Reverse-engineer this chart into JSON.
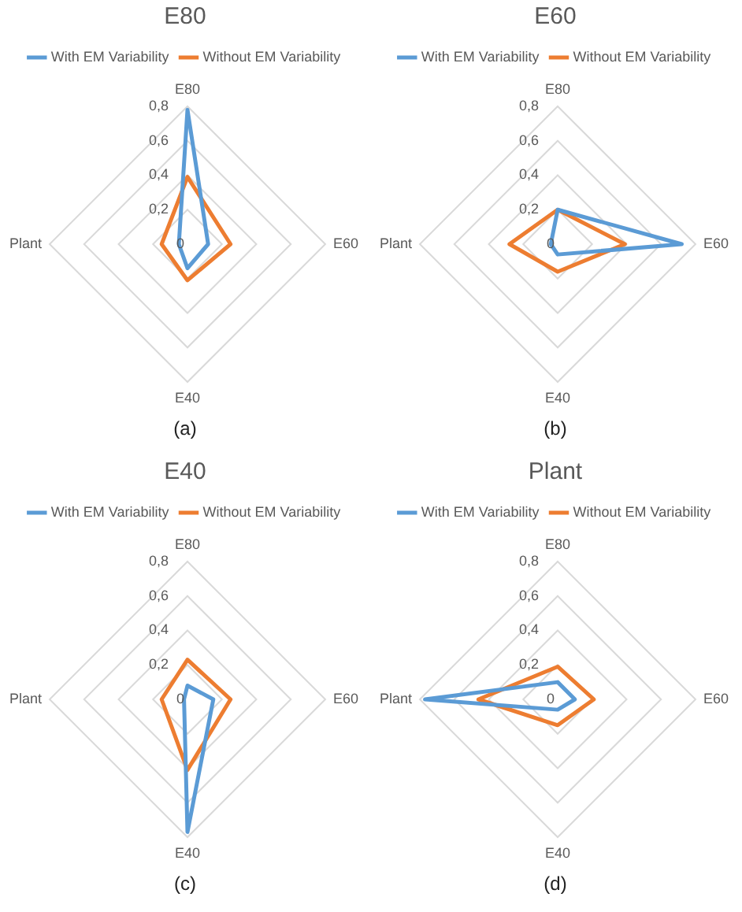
{
  "chart_data": [
    {
      "type": "radar",
      "title": "E80",
      "categories": [
        "E80",
        "E60",
        "E40",
        "Plant"
      ],
      "ylim": [
        0,
        0.8
      ],
      "yticks": [
        {
          "value": 0,
          "label": "0"
        },
        {
          "value": 0.2,
          "label": "0,2"
        },
        {
          "value": 0.4,
          "label": "0,4"
        },
        {
          "value": 0.6,
          "label": "0,6"
        },
        {
          "value": 0.8,
          "label": "0,8"
        }
      ],
      "grid": true,
      "legend": "top",
      "annotations": [
        "(a)"
      ],
      "series": [
        {
          "name": "With EM Variability",
          "color": "#5b9bd5",
          "values": [
            0.78,
            0.12,
            0.14,
            0.05
          ]
        },
        {
          "name": "Without EM Variability",
          "color": "#ed7d31",
          "values": [
            0.39,
            0.25,
            0.21,
            0.15
          ]
        }
      ]
    },
    {
      "type": "radar",
      "title": "E60",
      "categories": [
        "E80",
        "E60",
        "E40",
        "Plant"
      ],
      "ylim": [
        0,
        0.8
      ],
      "yticks": [
        {
          "value": 0,
          "label": "0"
        },
        {
          "value": 0.2,
          "label": "0,2"
        },
        {
          "value": 0.4,
          "label": "0,4"
        },
        {
          "value": 0.6,
          "label": "0,6"
        },
        {
          "value": 0.8,
          "label": "0,8"
        }
      ],
      "grid": true,
      "legend": "top",
      "annotations": [
        "(b)"
      ],
      "series": [
        {
          "name": "With EM Variability",
          "color": "#5b9bd5",
          "values": [
            0.2,
            0.72,
            0.06,
            0.04
          ]
        },
        {
          "name": "Without EM Variability",
          "color": "#ed7d31",
          "values": [
            0.2,
            0.39,
            0.16,
            0.28
          ]
        }
      ]
    },
    {
      "type": "radar",
      "title": "E40",
      "categories": [
        "E80",
        "E60",
        "E40",
        "Plant"
      ],
      "ylim": [
        0,
        0.8
      ],
      "yticks": [
        {
          "value": 0,
          "label": "0"
        },
        {
          "value": 0.2,
          "label": "0,2"
        },
        {
          "value": 0.4,
          "label": "0,4"
        },
        {
          "value": 0.6,
          "label": "0,6"
        },
        {
          "value": 0.8,
          "label": "0,8"
        }
      ],
      "grid": true,
      "legend": "top",
      "annotations": [
        "(c)"
      ],
      "series": [
        {
          "name": "With EM Variability",
          "color": "#5b9bd5",
          "values": [
            0.08,
            0.15,
            0.77,
            0.02
          ]
        },
        {
          "name": "Without EM Variability",
          "color": "#ed7d31",
          "values": [
            0.23,
            0.25,
            0.41,
            0.15
          ]
        }
      ]
    },
    {
      "type": "radar",
      "title": "Plant",
      "categories": [
        "E80",
        "E60",
        "E40",
        "Plant"
      ],
      "ylim": [
        0,
        0.8
      ],
      "yticks": [
        {
          "value": 0,
          "label": "0"
        },
        {
          "value": 0.2,
          "label": "0,2"
        },
        {
          "value": 0.4,
          "label": "0,4"
        },
        {
          "value": 0.6,
          "label": "0,6"
        },
        {
          "value": 0.8,
          "label": "0,8"
        }
      ],
      "grid": true,
      "legend": "top",
      "annotations": [
        "(d)"
      ],
      "series": [
        {
          "name": "With EM Variability",
          "color": "#5b9bd5",
          "values": [
            0.1,
            0.1,
            0.06,
            0.77
          ]
        },
        {
          "name": "Without EM Variability",
          "color": "#ed7d31",
          "values": [
            0.19,
            0.21,
            0.15,
            0.46
          ]
        }
      ]
    }
  ]
}
